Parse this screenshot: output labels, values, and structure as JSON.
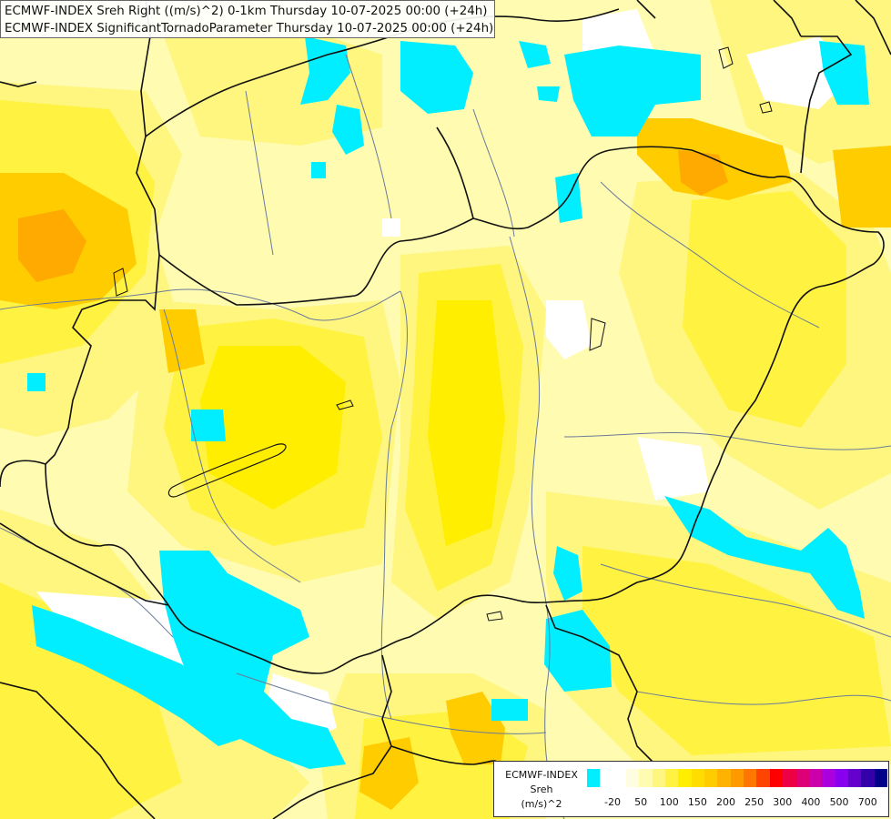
{
  "title": {
    "line1": "ECMWF-INDEX Sreh Right ((m/s)^2) 0-1km Thursday 10-07-2025 00:00 (+24h)",
    "line2": "ECMWF-INDEX SignificantTornadoParameter Thursday 10-07-2025 00:00 (+24h)"
  },
  "legend": {
    "model": "ECMWF-INDEX",
    "variable": "Sreh",
    "unit": "(m/s)^2",
    "colors": [
      "#00eeff",
      "#ffffff",
      "#ffffff",
      "#fffde0",
      "#fffbb0",
      "#fff680",
      "#fff240",
      "#ffee00",
      "#ffdd00",
      "#ffcc00",
      "#ffb300",
      "#ff9900",
      "#ff7700",
      "#ff4400",
      "#ff0000",
      "#ee0044",
      "#dd0077",
      "#cc00aa",
      "#aa00dd",
      "#8800ee",
      "#6600cc",
      "#3300aa",
      "#000088"
    ],
    "ticks": [
      "-20",
      "50",
      "100",
      "150",
      "200",
      "250",
      "300",
      "400",
      "500",
      "700"
    ]
  },
  "map_colors": {
    "cyan": "#00eeff",
    "white": "#ffffff",
    "pale_yellow": "#fffbb0",
    "light_yellow": "#fff680",
    "yellow": "#fff240",
    "deep_yellow": "#ffee00",
    "orange": "#ffcc00",
    "dark_orange": "#ffaa00",
    "border": "#111111",
    "river": "#6a7a9a"
  }
}
